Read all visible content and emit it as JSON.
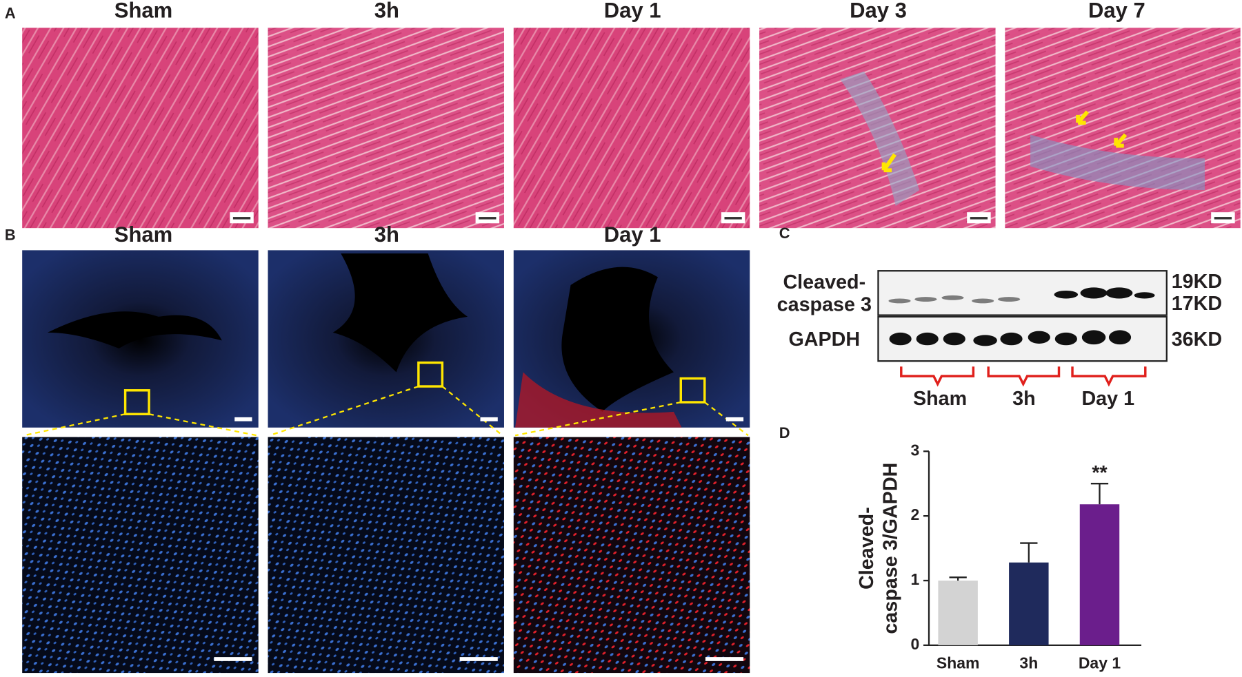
{
  "panels": {
    "a": {
      "label": "A",
      "titles": [
        "Sham",
        "3h",
        "Day 1",
        "Day 3",
        "Day 7"
      ]
    },
    "b": {
      "label": "B",
      "titles": [
        "Sham",
        "3h",
        "Day 1"
      ]
    },
    "c": {
      "label": "C",
      "protein_labels": [
        "Cleaved-",
        "caspase 3",
        "GAPDH"
      ],
      "sizes": [
        "19KD",
        "17KD",
        "36KD"
      ],
      "groups": [
        "Sham",
        "3h",
        "Day 1"
      ]
    },
    "d": {
      "label": "D"
    }
  },
  "chart_data": {
    "type": "bar",
    "y_label": [
      "Cleaved-",
      "caspase 3/GAPDH"
    ],
    "categories": [
      "Sham",
      "3h",
      "Day 1"
    ],
    "values": [
      1.0,
      1.28,
      2.18
    ],
    "errors": [
      0.05,
      0.3,
      0.32
    ],
    "colors": [
      "#d3d3d3",
      "#1f2a5c",
      "#6b1e8c"
    ],
    "value_annotations": [
      null,
      null,
      "**"
    ],
    "ylim": [
      0,
      3
    ],
    "yticks": [
      0,
      1,
      2,
      3
    ]
  }
}
